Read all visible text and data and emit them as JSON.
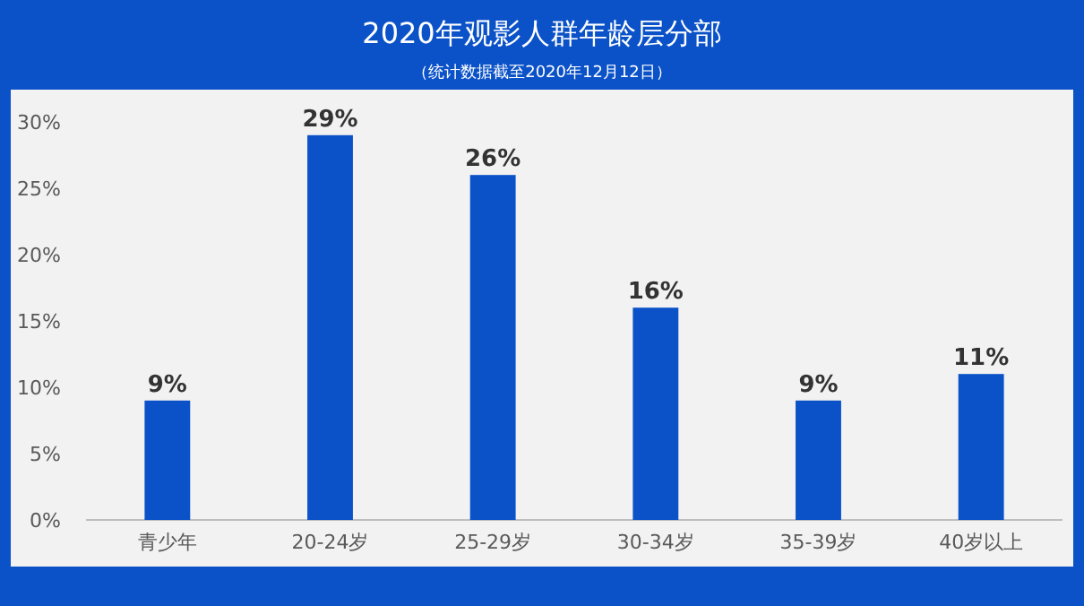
{
  "chart_data": {
    "type": "bar",
    "title": "2020年观影人群年龄层分部",
    "subtitle": "（统计数据截至2020年12月12日）",
    "categories": [
      "青少年",
      "20-24岁",
      "25-29岁",
      "30-34岁",
      "35-39岁",
      "40岁以上"
    ],
    "values": [
      9,
      29,
      26,
      16,
      9,
      11
    ],
    "value_labels": [
      "9%",
      "29%",
      "26%",
      "16%",
      "9%",
      "11%"
    ],
    "color": "#0b52c8",
    "ylim": [
      0,
      30
    ],
    "yticks": [
      {
        "value": 0,
        "label": "0%"
      },
      {
        "value": 5,
        "label": "5%"
      },
      {
        "value": 10,
        "label": "10%"
      },
      {
        "value": 15,
        "label": "15%"
      },
      {
        "value": 20,
        "label": "20%"
      },
      {
        "value": 25,
        "label": "25%"
      },
      {
        "value": 30,
        "label": "30%"
      }
    ],
    "grid": false
  }
}
